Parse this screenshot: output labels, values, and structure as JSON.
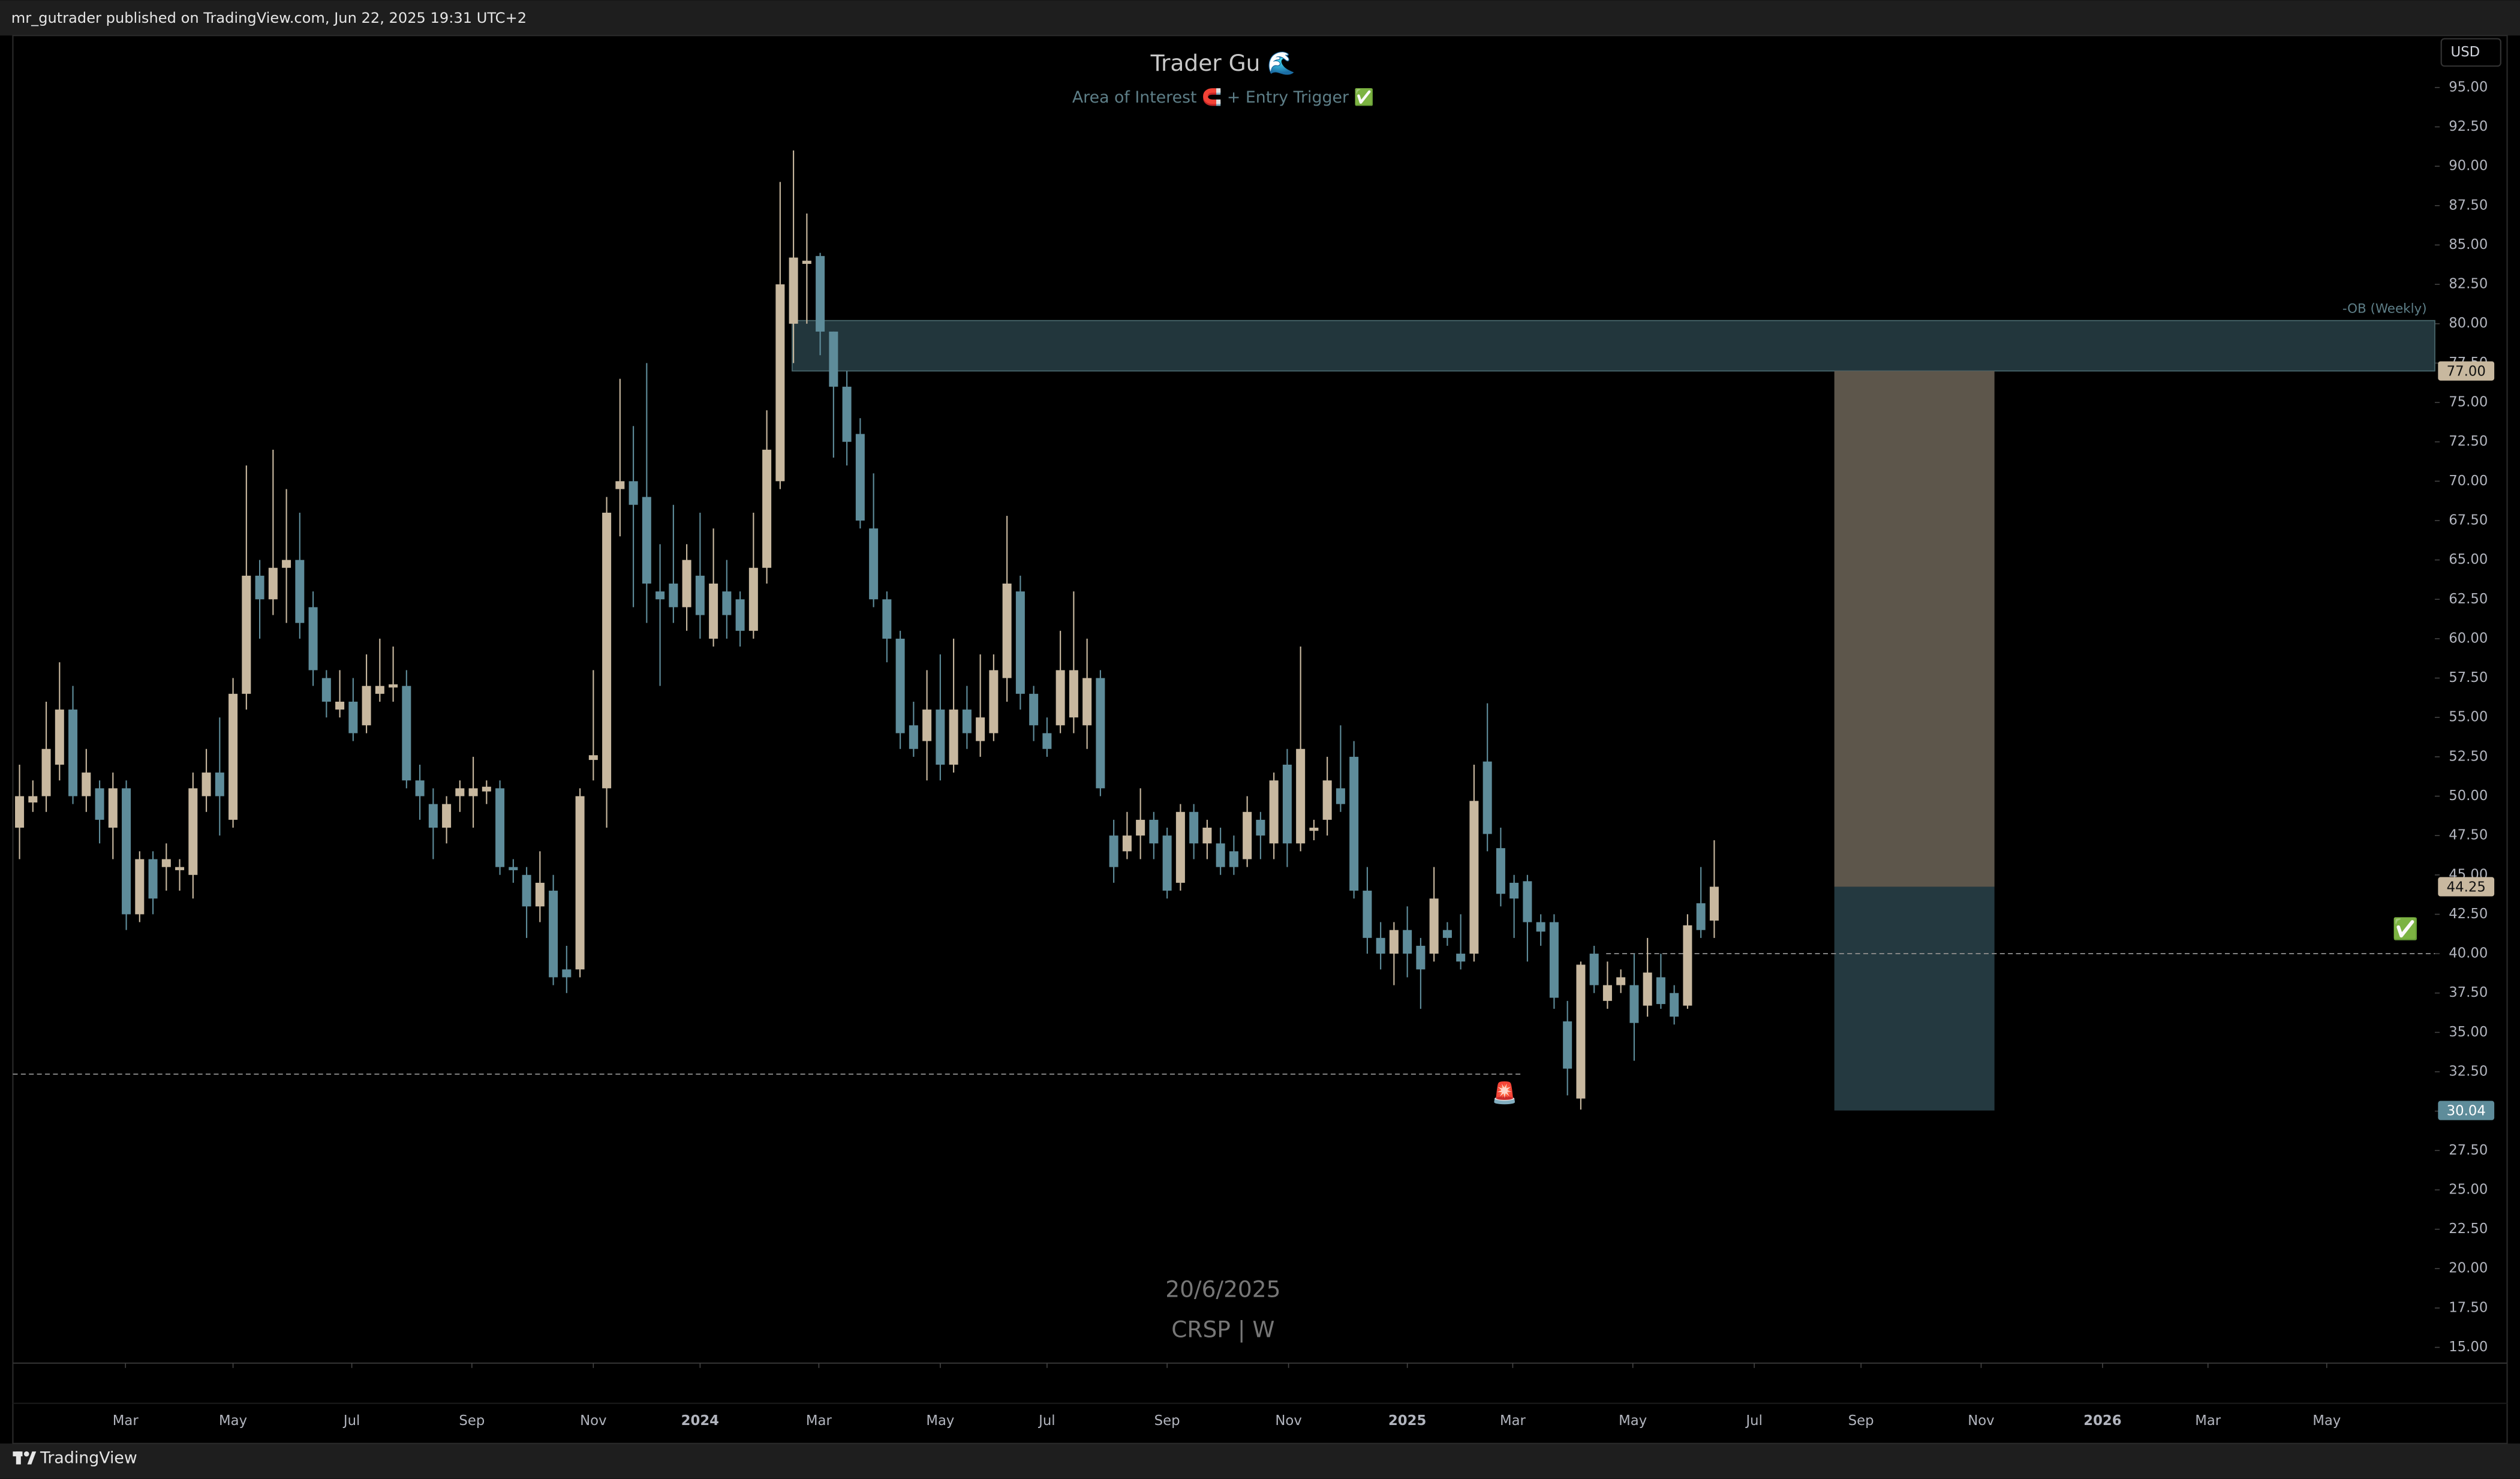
{
  "header": {
    "text": "mr_gutrader published on TradingView.com, Jun 22, 2025 19:31 UTC+2"
  },
  "currency_button": "USD",
  "footer": {
    "brand": "TradingView"
  },
  "chart_data": {
    "type": "candlestick",
    "title": "Trader Gu 🌊",
    "subtitle": "Area of Interest 🧲 + Entry Trigger ✅",
    "watermark": [
      "20/6/2025",
      "CRSP | W"
    ],
    "up_color": "#c8b89f",
    "down_color": "#5e8c9a",
    "open": [
      48,
      49.6,
      50,
      52,
      55.5,
      50,
      50.5,
      48,
      50.5,
      42.5,
      46,
      45.5,
      45.3,
      45,
      50,
      51.5,
      48.5,
      56.5,
      64,
      62.5,
      64.5,
      65,
      62,
      57.5,
      55.5,
      56,
      54.5,
      56.5,
      56.9,
      57,
      51,
      49.5,
      48,
      50,
      50,
      50.3,
      50.5,
      45.5,
      45,
      43,
      44,
      39,
      39,
      52.3,
      50.5,
      69.5,
      70,
      69,
      63,
      63.5,
      62,
      64,
      60,
      63,
      62.5,
      60.5,
      64.5,
      70,
      80,
      83.8,
      84.3,
      79.5,
      76,
      73,
      67,
      62.5,
      60,
      54.5,
      53.5,
      55.5,
      52,
      55.5,
      53.5,
      54,
      57.5,
      63,
      56.5,
      54,
      54.5,
      55,
      54.5,
      57.5,
      47.5,
      46.5,
      47.5,
      48.5,
      47.5,
      44.5,
      49,
      47,
      47,
      46.5,
      46,
      48.5,
      47,
      52,
      47,
      47.8,
      48.5,
      50.5,
      52.5,
      44,
      41,
      40,
      41.5,
      40.5,
      40,
      41.5,
      40,
      40,
      52.2,
      46.7,
      44.5,
      44.6,
      42,
      42,
      35.7,
      30.8,
      40,
      37,
      38,
      38,
      36.7,
      38.5,
      37.5,
      36.7,
      43.2,
      42.1
    ],
    "high": [
      52,
      51,
      56,
      58.5,
      57,
      53,
      51,
      51.5,
      51,
      46.5,
      46.5,
      47,
      46,
      51.5,
      53,
      55,
      57.5,
      71,
      65,
      72,
      69.5,
      68,
      63,
      58,
      58,
      57.5,
      59,
      60,
      59.5,
      58,
      52,
      50.5,
      50,
      51,
      52.5,
      51,
      51,
      46,
      45.5,
      46.5,
      45,
      40.5,
      50.5,
      58,
      69,
      76.5,
      73.5,
      77.5,
      66,
      68.5,
      66,
      68,
      67,
      65,
      63,
      68,
      74.5,
      89,
      91,
      87,
      84.5,
      79.5,
      77,
      74,
      70.5,
      63,
      60.5,
      56,
      58,
      59,
      60,
      57,
      59,
      59,
      67.8,
      64,
      57,
      55,
      60.5,
      63,
      60,
      58,
      48.5,
      49,
      50.5,
      49,
      48,
      49.5,
      49.5,
      48.5,
      48,
      47.5,
      50,
      49,
      51.5,
      53,
      59.5,
      48.5,
      52.5,
      54.5,
      53.5,
      45.5,
      42,
      42,
      43,
      41,
      45.5,
      42,
      42.5,
      52,
      55.9,
      48,
      45,
      45,
      42.5,
      42.5,
      37,
      39.5,
      40.5,
      39.5,
      39,
      40,
      41,
      40,
      38,
      42.5,
      45.5,
      47.2
    ],
    "low": [
      46,
      49,
      49,
      51,
      49.5,
      49,
      47,
      46,
      41.5,
      42,
      42.5,
      44,
      44,
      43.5,
      49,
      47.5,
      48,
      55.5,
      60,
      61.5,
      61,
      60,
      57,
      55,
      55,
      53.5,
      54,
      56,
      56,
      50.5,
      48.5,
      46,
      47,
      49,
      48,
      49.5,
      45,
      44.5,
      41,
      42,
      38,
      37.5,
      38.5,
      51,
      48,
      66.5,
      62,
      61,
      57,
      61,
      60.5,
      60,
      59.5,
      60,
      59.5,
      60,
      63.5,
      69.5,
      77.5,
      80,
      78,
      71.5,
      71,
      67,
      62,
      58.5,
      53,
      52.5,
      51,
      51,
      51.5,
      53,
      52.5,
      53.5,
      56,
      55.5,
      53.5,
      52.5,
      54,
      54,
      53,
      50,
      44.5,
      46,
      46,
      46,
      43.5,
      44,
      46,
      46,
      45,
      45,
      45.5,
      46,
      46,
      45.5,
      46.5,
      47.2,
      47.5,
      49,
      43.5,
      40,
      39,
      38,
      38.5,
      36.5,
      39.5,
      40.5,
      39,
      39.5,
      46.5,
      43,
      41,
      39.5,
      40.5,
      36.5,
      31,
      30.1,
      37.5,
      36.5,
      37.5,
      33.2,
      36,
      36.5,
      35.5,
      36.5,
      41,
      41
    ],
    "close": [
      50,
      50,
      53,
      55.5,
      50,
      51.5,
      48.5,
      50.5,
      42.5,
      46,
      43.5,
      46,
      45.5,
      50.5,
      51.5,
      50,
      56.5,
      64,
      62.5,
      64.5,
      65,
      61,
      58,
      56,
      56,
      54,
      57,
      57,
      57.1,
      51,
      50,
      48,
      49.5,
      50.5,
      50.5,
      50.6,
      45.5,
      45.3,
      43,
      44.5,
      38.5,
      38.5,
      50,
      52.6,
      68,
      70,
      68.5,
      63.5,
      62.5,
      62,
      65,
      61.5,
      63.5,
      61.5,
      60.5,
      64.5,
      72,
      82.5,
      84.2,
      84,
      79.5,
      76,
      72.5,
      67.5,
      62.5,
      60,
      54,
      53,
      55.5,
      52,
      55.5,
      54,
      55,
      58,
      63.5,
      56.5,
      54.5,
      53,
      58,
      58,
      57.5,
      50.5,
      45.5,
      47.5,
      48.5,
      47,
      44,
      49,
      47,
      48,
      45.5,
      45.5,
      49,
      47.5,
      51,
      47,
      53,
      48,
      51,
      49.5,
      44,
      41,
      40,
      41.5,
      40,
      39,
      43.5,
      41,
      39.5,
      49.7,
      47.6,
      43.8,
      43.5,
      42,
      41.4,
      37.2,
      32.7,
      39.3,
      38,
      38,
      38.5,
      35.6,
      38.8,
      36.8,
      36,
      41.8,
      41.5,
      44.25
    ],
    "xlim": [
      -0.5,
      181
    ],
    "xticks": [
      {
        "value": 7.94,
        "label": "Mar"
      },
      {
        "value": 16.0,
        "label": "May"
      },
      {
        "value": 24.9,
        "label": "Jul"
      },
      {
        "value": 33.9,
        "label": "Sep"
      },
      {
        "value": 43.0,
        "label": "Nov"
      },
      {
        "value": 51.0,
        "label": "2024"
      },
      {
        "value": 59.9,
        "label": "Mar"
      },
      {
        "value": 69.0,
        "label": "May"
      },
      {
        "value": 77.0,
        "label": "Jul"
      },
      {
        "value": 86.0,
        "label": "Sep"
      },
      {
        "value": 95.1,
        "label": "Nov"
      },
      {
        "value": 104.0,
        "label": "2025"
      },
      {
        "value": 111.9,
        "label": "Mar"
      },
      {
        "value": 120.9,
        "label": "May"
      },
      {
        "value": 130.0,
        "label": "Jul"
      },
      {
        "value": 138.0,
        "label": "Sep"
      },
      {
        "value": 147.0,
        "label": "Nov"
      },
      {
        "value": 156.1,
        "label": "2026"
      },
      {
        "value": 164.0,
        "label": "Mar"
      },
      {
        "value": 172.9,
        "label": "May"
      }
    ],
    "ylim": [
      14,
      98.3
    ],
    "yticks": [
      {
        "value": 15,
        "label": "15.00"
      },
      {
        "value": 17.5,
        "label": "17.50"
      },
      {
        "value": 20,
        "label": "20.00"
      },
      {
        "value": 22.5,
        "label": "22.50"
      },
      {
        "value": 25,
        "label": "25.00"
      },
      {
        "value": 27.5,
        "label": "27.50"
      },
      {
        "value": 30,
        "label": "30.00"
      },
      {
        "value": 32.5,
        "label": "32.50"
      },
      {
        "value": 35,
        "label": "35.00"
      },
      {
        "value": 37.5,
        "label": "37.50"
      },
      {
        "value": 40,
        "label": "40.00"
      },
      {
        "value": 42.5,
        "label": "42.50"
      },
      {
        "value": 45,
        "label": "45.00"
      },
      {
        "value": 47.5,
        "label": "47.50"
      },
      {
        "value": 50,
        "label": "50.00"
      },
      {
        "value": 52.5,
        "label": "52.50"
      },
      {
        "value": 55,
        "label": "55.00"
      },
      {
        "value": 57.5,
        "label": "57.50"
      },
      {
        "value": 60,
        "label": "60.00"
      },
      {
        "value": 62.5,
        "label": "62.50"
      },
      {
        "value": 65,
        "label": "65.00"
      },
      {
        "value": 67.5,
        "label": "67.50"
      },
      {
        "value": 70,
        "label": "70.00"
      },
      {
        "value": 72.5,
        "label": "72.50"
      },
      {
        "value": 75,
        "label": "75.00"
      },
      {
        "value": 77.5,
        "label": "77.50"
      },
      {
        "value": 80,
        "label": "80.00"
      },
      {
        "value": 82.5,
        "label": "82.50"
      },
      {
        "value": 85,
        "label": "85.00"
      },
      {
        "value": 87.5,
        "label": "87.50"
      },
      {
        "value": 90,
        "label": "90.00"
      },
      {
        "value": 92.5,
        "label": "92.50"
      },
      {
        "value": 95,
        "label": "95.00"
      }
    ],
    "zone": {
      "label": "-OB (Weekly)",
      "low": 77,
      "high": 80.2,
      "x_start": 57.9,
      "color": "#22363c",
      "border": "#4d6d73"
    },
    "position": {
      "x_start": 136.0,
      "x_end": 148.0,
      "entry": 44.25,
      "target": 77,
      "stop": 30.04,
      "target_color": "#5d564b",
      "stop_color": "#243940"
    },
    "levels": [
      {
        "value": 40,
        "x_start": 118.9,
        "x_end": 181
      },
      {
        "value": 32.35,
        "x_start": -0.5,
        "x_end": 112.5
      }
    ],
    "price_labels": [
      {
        "value": 77,
        "label": "77.00",
        "color": "#c8b89f",
        "text_color": "#111111"
      },
      {
        "value": 44.25,
        "label": "44.25",
        "color": "#c8b89f",
        "text_color": "#111111"
      },
      {
        "value": 30.04,
        "label": "30.04",
        "color": "#5e8c9a",
        "text_color": "#ffffff"
      }
    ],
    "markers": [
      {
        "text": "🚨",
        "x": 111.3,
        "y": 31.1
      },
      {
        "text": "✅",
        "x": 178.8,
        "y": 41.5
      }
    ]
  }
}
